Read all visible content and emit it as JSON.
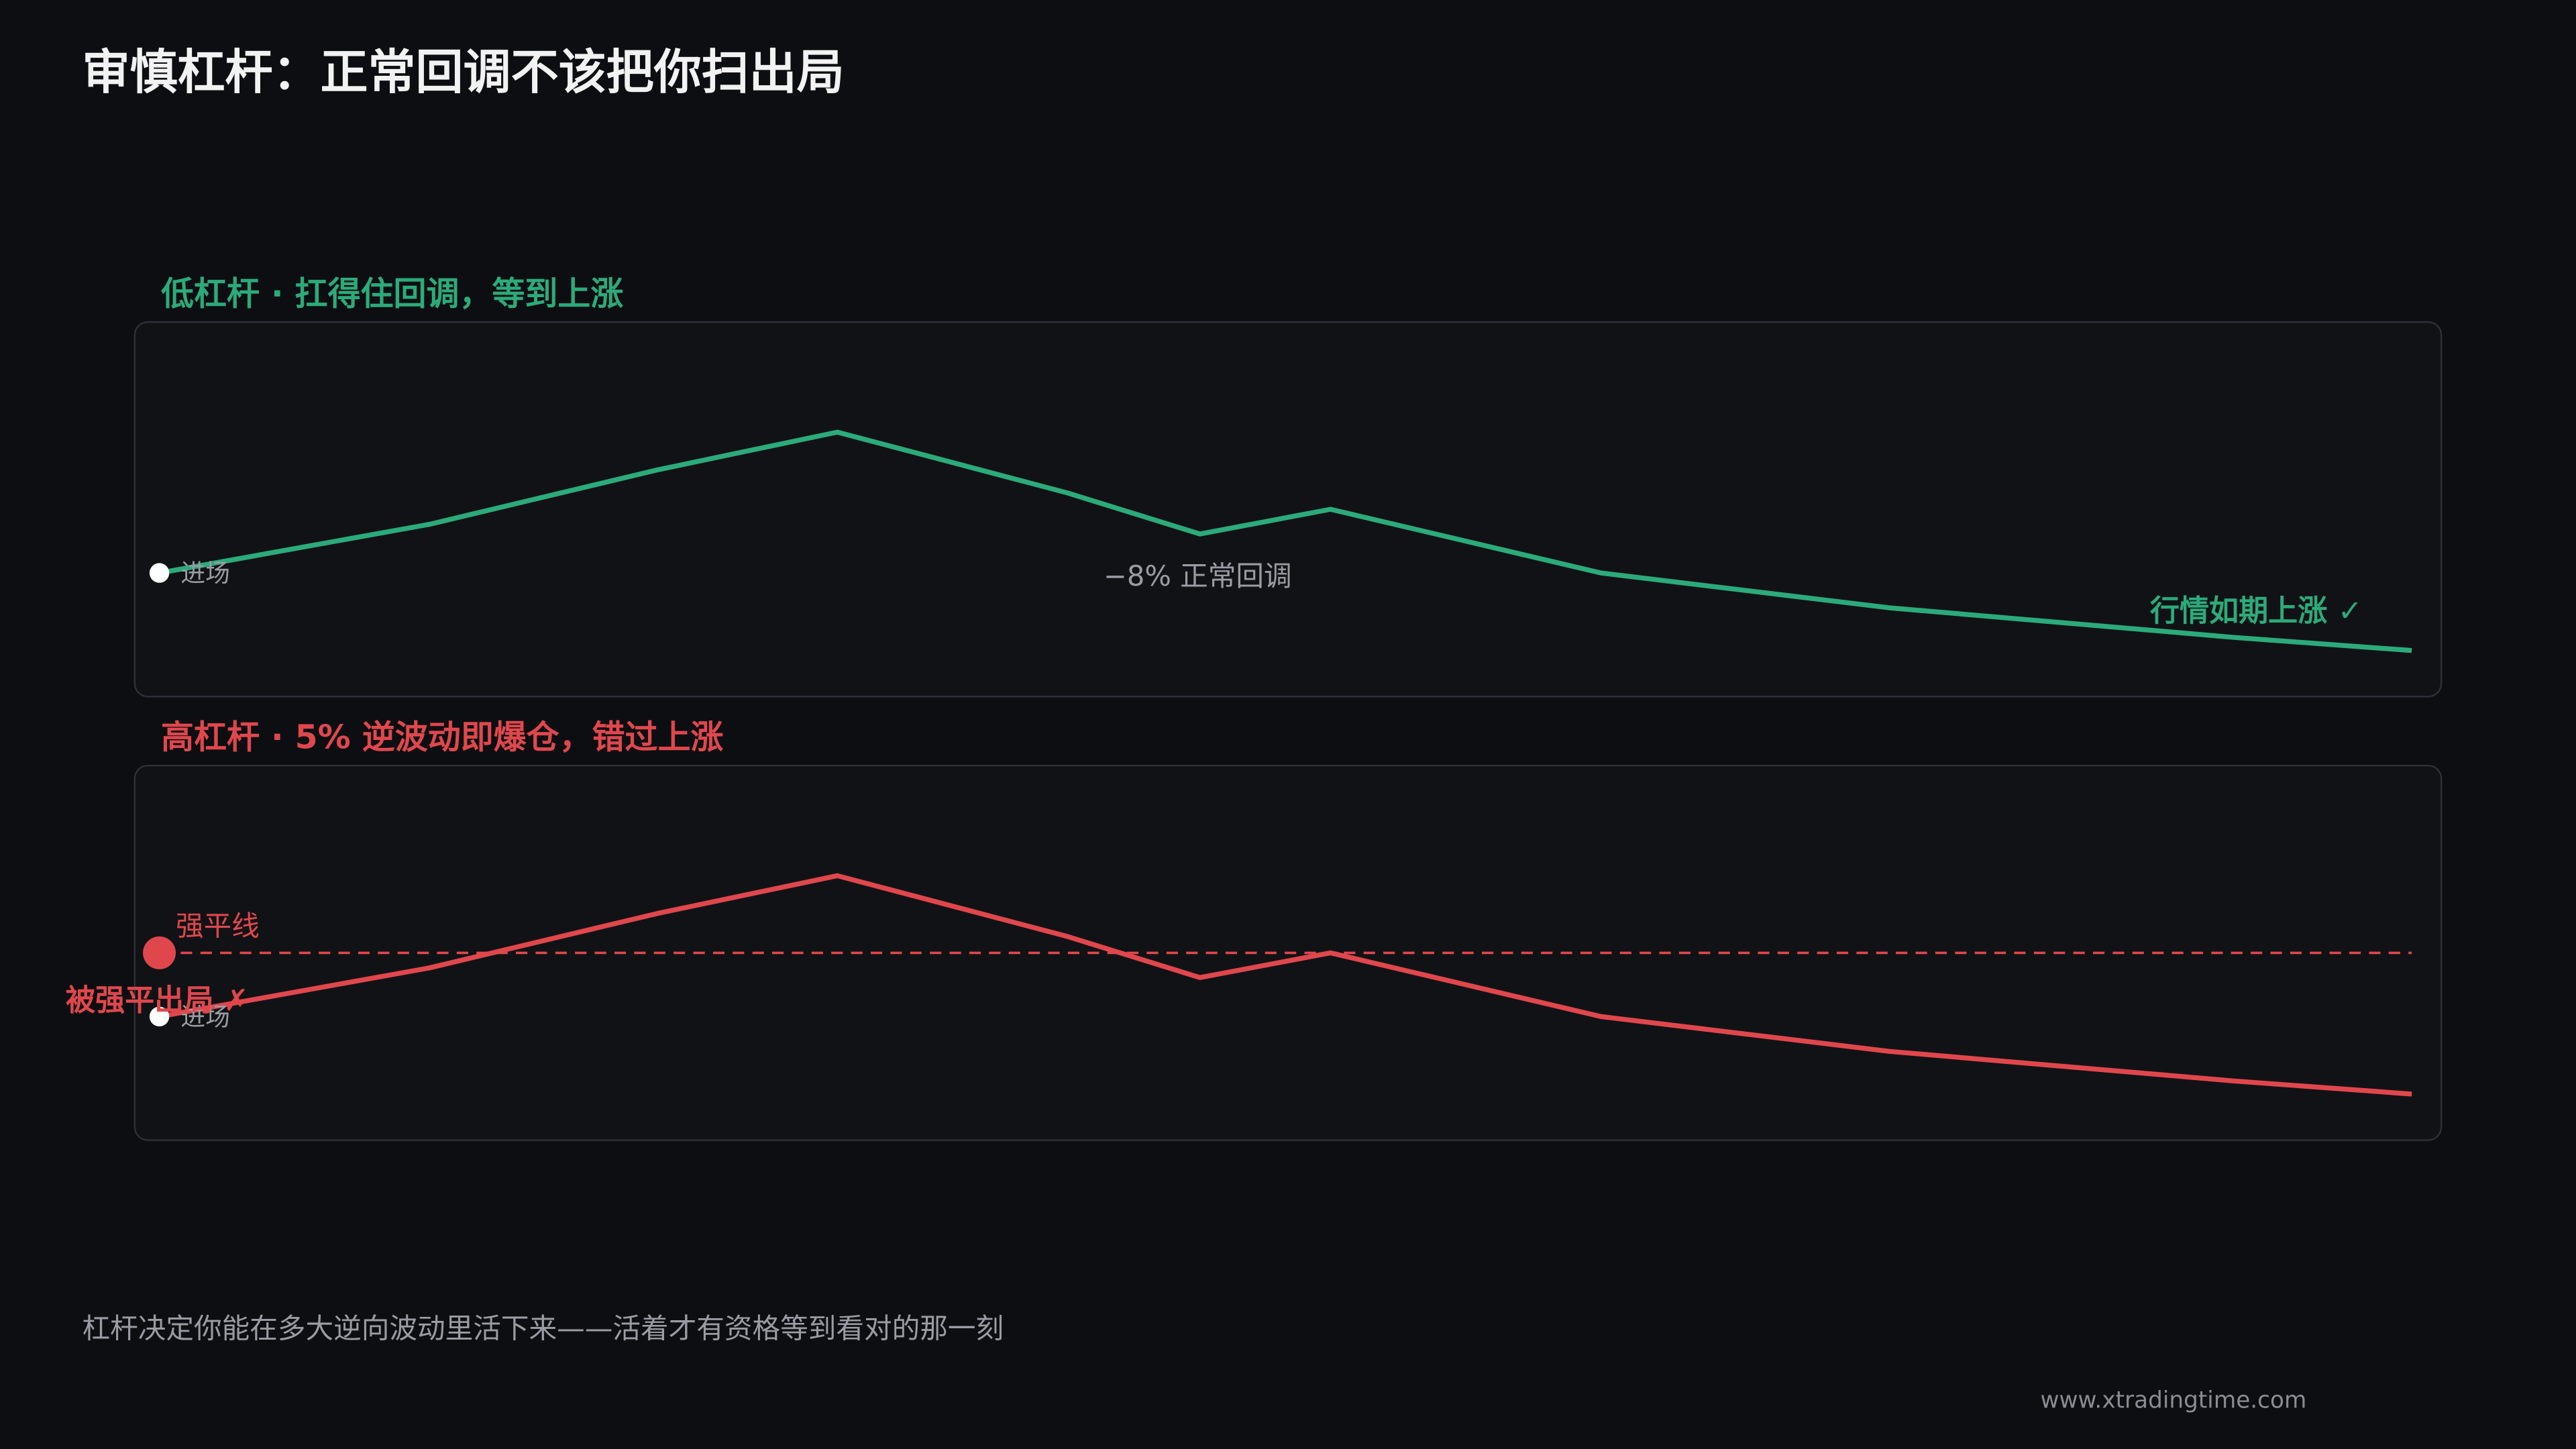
{
  "title": "审慎杠杆：正常回调不该把你扫出局",
  "chart_data": [
    {
      "type": "line",
      "title": "低杠杆 · 扛得住回调，等到上涨",
      "color": "#2bab7a",
      "x": [
        0,
        12,
        22.1,
        30.1,
        40.3,
        46.2,
        52,
        64,
        76.8,
        92.1,
        100
      ],
      "series": [
        {
          "color": "#2bab7a",
          "values": [
            33,
            46,
            60.5,
            70.6,
            54.4,
            43.4,
            50,
            33,
            23.7,
            15.8,
            12.3
          ]
        }
      ],
      "xlim": [
        0,
        100
      ],
      "ylim": [
        0,
        100
      ],
      "entry_label": "进场",
      "pullback_label": "−8% 正常回调",
      "outcome_label": "行情如期上涨 ✓"
    },
    {
      "type": "line",
      "title": "高杠杆 · 5% 逆波动即爆仓，错过上涨",
      "color": "#e0474c",
      "x": [
        0,
        12,
        22.1,
        30.1,
        40.3,
        46.2,
        52,
        64,
        76.8,
        92.1,
        100
      ],
      "series": [
        {
          "color": "#e0474c",
          "values": [
            33,
            46,
            60.5,
            70.6,
            54.4,
            43.4,
            50,
            33,
            23.7,
            15.8,
            12.3
          ]
        }
      ],
      "xlim": [
        0,
        100
      ],
      "ylim": [
        0,
        100
      ],
      "entry_label": "进场",
      "liquidation_line": {
        "label": "强平线",
        "value": 50
      },
      "outcome_label": "被强平出局 ✗"
    }
  ],
  "caption": "杠杆决定你能在多大逆向波动里活下来——活着才有资格等到看对的那一刻",
  "watermark": "www.xtradingtime.com"
}
